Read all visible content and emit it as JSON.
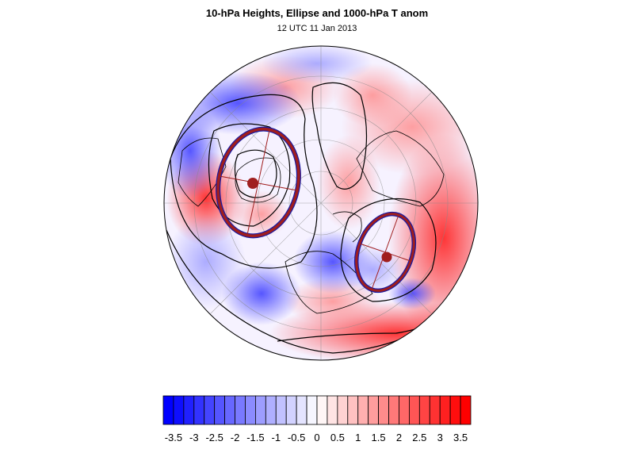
{
  "title": "10-hPa Heights, Ellipse and 1000-hPa T anom",
  "subtitle": "12 UTC 11 Jan 2013",
  "map": {
    "projection": "polar orthographic (Northern Hemisphere)",
    "ellipse_color": "#a01e1e",
    "ellipse_outline_color": "#1a1aa0",
    "contour_color": "#000000",
    "positive_anomaly_color": "#ff0000",
    "negative_anomaly_color": "#0000ff"
  },
  "colorbar": {
    "tick_labels": [
      "-3.5",
      "-3",
      "-2.5",
      "-2",
      "-1.5",
      "-1",
      "-0.5",
      "0",
      "0.5",
      "1",
      "1.5",
      "2",
      "2.5",
      "3",
      "3.5"
    ],
    "min": -3.75,
    "max": 3.75,
    "step": 0.25,
    "low_color": "#0000ff",
    "mid_color": "#ffffff",
    "high_color": "#ff0000"
  }
}
